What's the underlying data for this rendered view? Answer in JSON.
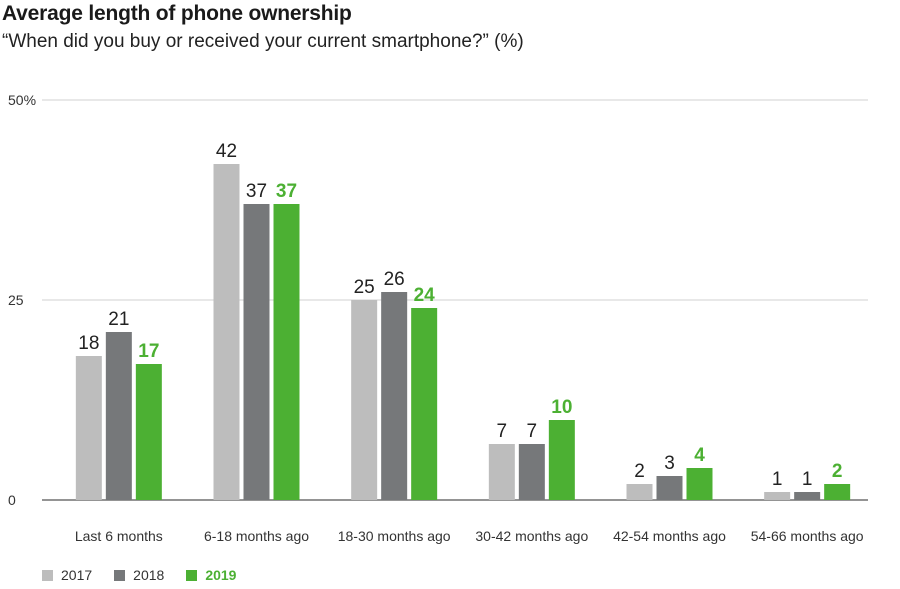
{
  "title": "Average length of phone ownership",
  "subtitle": "“When did you buy or received your current smartphone?” (%)",
  "chart_data": {
    "type": "bar",
    "categories": [
      "Last 6 months",
      "6-18 months ago",
      "18-30 months ago",
      "30-42 months ago",
      "42-54 months ago",
      "54-66 months ago"
    ],
    "series": [
      {
        "name": "2017",
        "values": [
          18,
          42,
          25,
          7,
          2,
          1
        ],
        "color": "#bdbdbd",
        "label_color": "#222222",
        "label_bold": false
      },
      {
        "name": "2018",
        "values": [
          21,
          37,
          26,
          7,
          3,
          1
        ],
        "color": "#76787a",
        "label_color": "#222222",
        "label_bold": false
      },
      {
        "name": "2019",
        "values": [
          17,
          37,
          24,
          10,
          4,
          2
        ],
        "color": "#4cb033",
        "label_color": "#4cb033",
        "label_bold": true
      }
    ],
    "yticks": [
      "0",
      "25",
      "50%"
    ],
    "ytick_values": [
      0,
      25,
      50
    ],
    "ylim": [
      0,
      50
    ],
    "xlabel": "",
    "ylabel": "",
    "legend_position": "bottom-left"
  }
}
